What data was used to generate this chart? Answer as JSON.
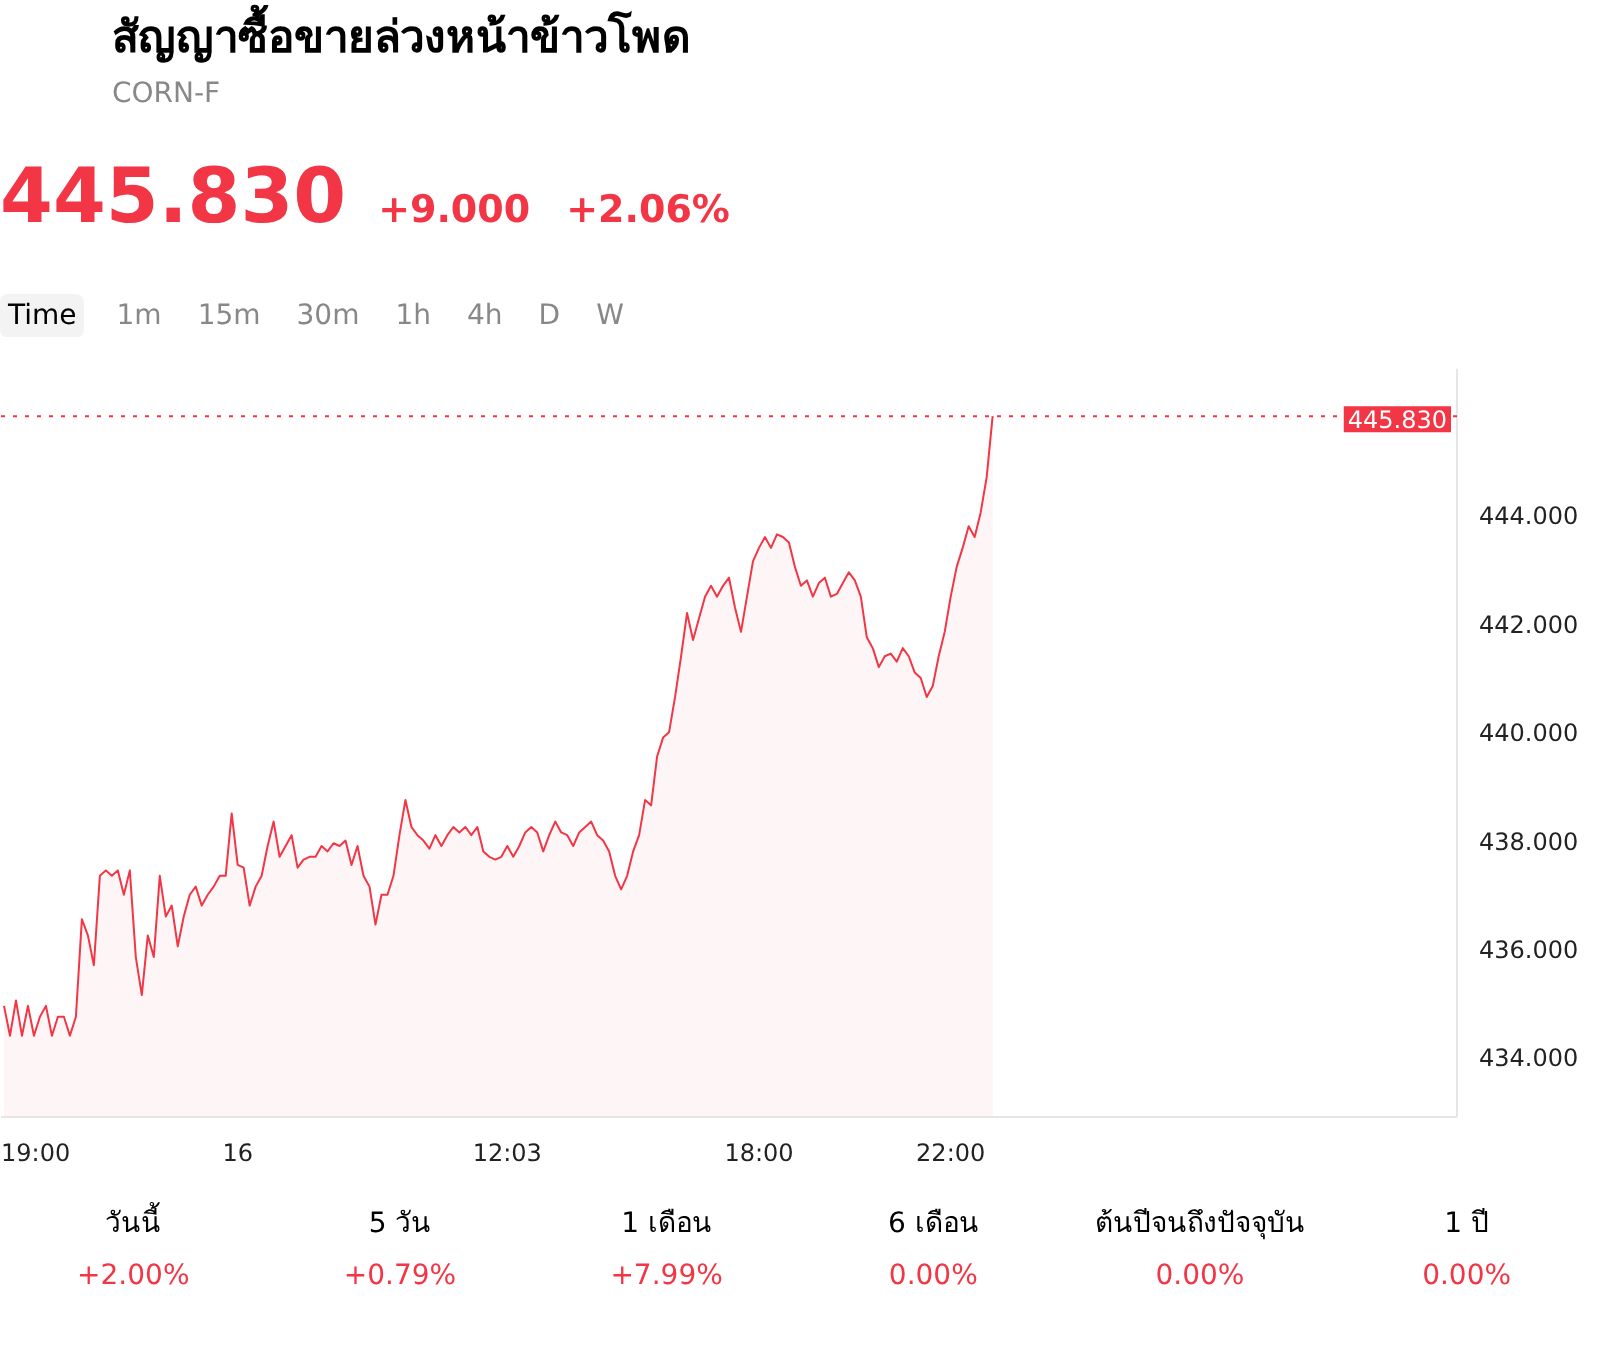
{
  "chart_data": {
    "type": "area",
    "title": "สัญญาซื้อขายล่วงหน้าข้าวโพด",
    "subtitle": "CORN-F",
    "annotations": [
      "445.830",
      "+9.000",
      "+2.06%",
      "Time",
      "1m",
      "15m",
      "30m",
      "1h",
      "4h",
      "D",
      "W",
      "วันนี้",
      "+2.00%",
      "5 วัน",
      "+0.79%",
      "1 เดือน",
      "+7.99%",
      "6 เดือน",
      "0.00%",
      "ต้นปีจนถึงปัจจุบัน",
      "0.00%",
      "1 ปี",
      "0.00%"
    ],
    "categories": [
      null,
      null,
      null,
      null,
      null,
      "19:00",
      null,
      null,
      null,
      null,
      null,
      null,
      null,
      null,
      null,
      null,
      null,
      null,
      null,
      null,
      null,
      null,
      null,
      null,
      null,
      null,
      null,
      null,
      null,
      null,
      null,
      null,
      null,
      null,
      null,
      null,
      null,
      null,
      null,
      "16",
      null,
      null,
      null,
      null,
      null,
      null,
      null,
      null,
      null,
      null,
      null,
      null,
      null,
      null,
      null,
      null,
      null,
      null,
      null,
      null,
      null,
      null,
      null,
      null,
      null,
      null,
      null,
      null,
      null,
      null,
      null,
      null,
      null,
      null,
      null,
      null,
      null,
      null,
      null,
      null,
      null,
      null,
      null,
      null,
      "12:03",
      null,
      null,
      null,
      null,
      null,
      null,
      null,
      null,
      null,
      null,
      null,
      null,
      null,
      null,
      null,
      null,
      null,
      null,
      null,
      null,
      null,
      null,
      null,
      null,
      null,
      null,
      null,
      null,
      null,
      null,
      null,
      null,
      null,
      null,
      null,
      null,
      null,
      null,
      null,
      null,
      null,
      "18:00",
      null,
      null,
      null,
      null,
      null,
      null,
      null,
      null,
      null,
      null,
      null,
      null,
      null,
      null,
      null,
      null,
      null,
      null,
      null,
      null,
      null,
      null,
      null,
      null,
      null,
      null,
      null,
      null,
      null,
      null,
      null,
      "22:00",
      null,
      null,
      null,
      null,
      null,
      null,
      null,
      null,
      null,
      null,
      null,
      null,
      null,
      null,
      null,
      null,
      null,
      null,
      null,
      null,
      null,
      null,
      null,
      null,
      null,
      null,
      null,
      null,
      null,
      null,
      null,
      null,
      null,
      null,
      null,
      null,
      null,
      null,
      null,
      null,
      null,
      null,
      null,
      null,
      null,
      null,
      null,
      null,
      null,
      null,
      null,
      null,
      null,
      null,
      null,
      null,
      null,
      null,
      null,
      null,
      null,
      null,
      null,
      null,
      null,
      null,
      null,
      null,
      null,
      null,
      null,
      null,
      null,
      null,
      null,
      null,
      null,
      null,
      null,
      null,
      null,
      null,
      null,
      null
    ],
    "series": [
      {
        "color": "#f23645",
        "values": [
          434.95,
          434.4,
          435.05,
          434.4,
          434.95,
          434.4,
          434.75,
          434.95,
          434.4,
          434.75,
          434.75,
          434.4,
          434.75,
          436.55,
          436.25,
          435.7,
          437.35,
          437.45,
          437.35,
          437.45,
          437.0,
          437.45,
          435.85,
          435.15,
          436.25,
          435.85,
          437.35,
          436.6,
          436.8,
          436.05,
          436.6,
          437.0,
          437.15,
          436.8,
          437.0,
          437.15,
          437.35,
          437.35,
          438.5,
          437.55,
          437.5,
          436.8,
          437.15,
          437.35,
          437.9,
          438.35,
          437.7,
          437.9,
          438.1,
          437.5,
          437.65,
          437.7,
          437.7,
          437.9,
          437.8,
          437.95,
          437.9,
          438.0,
          437.55,
          437.9,
          437.35,
          437.15,
          436.45,
          437.0,
          437.0,
          437.35,
          438.1,
          438.75,
          438.25,
          438.1,
          438.0,
          437.85,
          438.1,
          437.9,
          438.1,
          438.25,
          438.15,
          438.25,
          438.1,
          438.25,
          437.8,
          437.7,
          437.65,
          437.7,
          437.9,
          437.7,
          437.9,
          438.15,
          438.25,
          438.15,
          437.8,
          438.1,
          438.35,
          438.15,
          438.1,
          437.9,
          438.15,
          438.25,
          438.35,
          438.1,
          438.0,
          437.8,
          437.35,
          437.1,
          437.35,
          437.8,
          438.1,
          438.75,
          438.65,
          439.55,
          439.9,
          440.0,
          440.65,
          441.4,
          442.2,
          441.7,
          442.1,
          442.5,
          442.7,
          442.5,
          442.7,
          442.85,
          442.3,
          441.85,
          442.5,
          443.15,
          443.4,
          443.6,
          443.4,
          443.65,
          443.6,
          443.5,
          443.05,
          442.7,
          442.8,
          442.5,
          442.75,
          442.85,
          442.5,
          442.55,
          442.75,
          442.95,
          442.8,
          442.5,
          441.75,
          441.55,
          441.2,
          441.4,
          441.45,
          441.3,
          441.55,
          441.4,
          441.1,
          441.0,
          440.65,
          440.85,
          441.4,
          441.85,
          442.5,
          443.05,
          443.4,
          443.8,
          443.6,
          444.05,
          444.7,
          445.83,
          null,
          null,
          null,
          null,
          null,
          null,
          null,
          null,
          null,
          null,
          null,
          null,
          null,
          null,
          null,
          null,
          null,
          null,
          null,
          null,
          null,
          null,
          null,
          null,
          null,
          null,
          null,
          null,
          null,
          null,
          null,
          null,
          null,
          null,
          null,
          null,
          null,
          null,
          null,
          null,
          null,
          null,
          null,
          null,
          null,
          null,
          null,
          null,
          null,
          null,
          null,
          null,
          null,
          null,
          null,
          null,
          null,
          null,
          null,
          null,
          null,
          null,
          null,
          null,
          null,
          null,
          null,
          null,
          null,
          null,
          null,
          null,
          null,
          null,
          null,
          null,
          null
        ]
      }
    ],
    "ylim": [
      432.9,
      446.7
    ],
    "yticks": [
      {
        "value": 434,
        "label": "434.000"
      },
      {
        "value": 436,
        "label": "436.000"
      },
      {
        "value": 438,
        "label": "438.000"
      },
      {
        "value": 440,
        "label": "440.000"
      },
      {
        "value": 442,
        "label": "442.000"
      },
      {
        "value": 444,
        "label": "444.000"
      }
    ],
    "ref_lines": [
      {
        "axis": "y",
        "value": 445.83,
        "label": "445.830",
        "color": "#f23645",
        "line_style": "dotted"
      }
    ],
    "grid": false
  }
}
